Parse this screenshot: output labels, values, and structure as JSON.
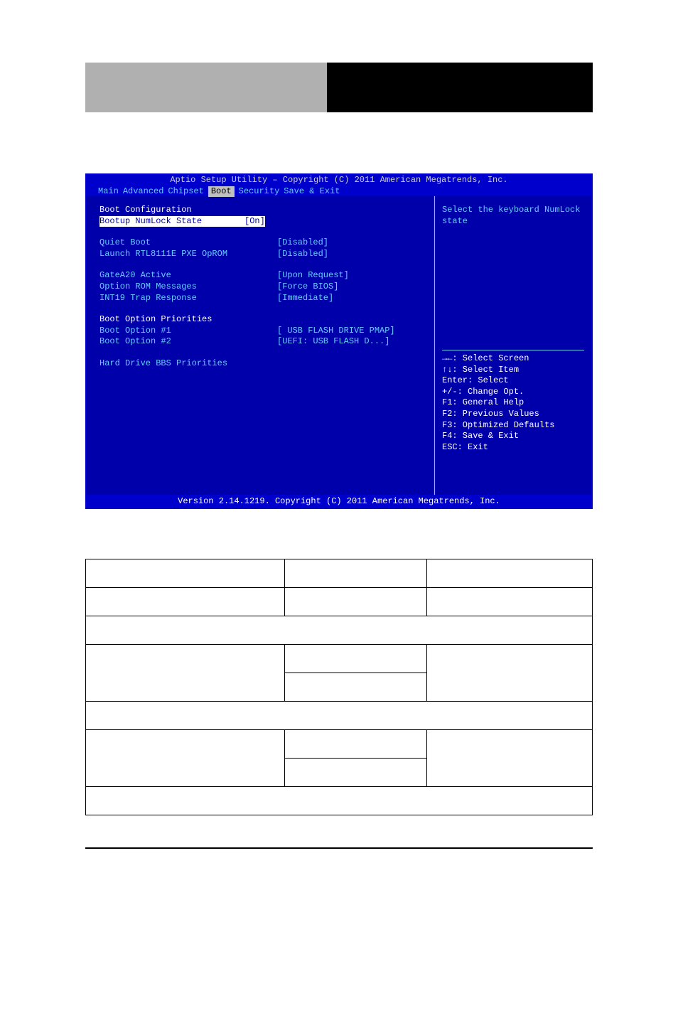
{
  "bios": {
    "title": "Aptio Setup Utility – Copyright (C) 2011 American Megatrends, Inc.",
    "footer": "Version 2.14.1219. Copyright (C) 2011 American Megatrends, Inc.",
    "tabs": [
      "Main",
      "Advanced",
      "Chipset",
      "Boot",
      "Security",
      "Save & Exit"
    ],
    "active_tab_index": 3,
    "colors": {
      "header_bg": "#0000cc",
      "body_bg": "#0000aa",
      "text_cyan": "#66ccff",
      "text_white": "#ffffff",
      "selected_bg": "#ffffff",
      "selected_fg": "#0000aa"
    },
    "main_panel": {
      "section1_header": "Boot Configuration",
      "rows": [
        {
          "label": "Bootup NumLock State",
          "value": "[On]",
          "selected": true
        },
        {
          "spacer": true
        },
        {
          "label": "Quiet Boot",
          "value": "[Disabled]"
        },
        {
          "label": "Launch RTL8111E PXE OpROM",
          "value": "[Disabled]"
        },
        {
          "spacer": true
        },
        {
          "label": "GateA20 Active",
          "value": "[Upon Request]"
        },
        {
          "label": "Option ROM Messages",
          "value": "[Force BIOS]"
        },
        {
          "label": "INT19 Trap Response",
          "value": "[Immediate]"
        },
        {
          "spacer": true
        }
      ],
      "section2_header": "Boot Option Priorities",
      "rows2": [
        {
          "label": "Boot Option #1",
          "value": "[ USB FLASH DRIVE PMAP]"
        },
        {
          "label": "Boot Option #2",
          "value": "[UEFI:  USB FLASH D...]"
        },
        {
          "spacer": true
        },
        {
          "label": "Hard Drive BBS Priorities",
          "value": ""
        }
      ]
    },
    "side_panel": {
      "help_text": "Select the keyboard NumLock state",
      "nav": [
        "→←: Select Screen",
        "↑↓: Select Item",
        "Enter: Select",
        "+/-: Change Opt.",
        "F1: General Help",
        "F2: Previous Values",
        "F3: Optimized Defaults",
        "F4: Save & Exit",
        "ESC: Exit"
      ]
    }
  },
  "params_table": {
    "border_color": "#000000",
    "rows": [
      {
        "type": "header3",
        "c1": "",
        "c2": "",
        "c3": ""
      },
      {
        "type": "row3",
        "c1": "",
        "c2": "",
        "c3": ""
      },
      {
        "type": "span",
        "text": ""
      },
      {
        "type": "row3",
        "c1": "",
        "c2": "",
        "c3": "",
        "c3_rowspan": 2
      },
      {
        "type": "row2",
        "c1_hidden": true,
        "c2": ""
      },
      {
        "type": "span",
        "text": ""
      },
      {
        "type": "row3",
        "c1": "",
        "c2": "",
        "c3": "",
        "c3_rowspan": 2
      },
      {
        "type": "row2",
        "c1_hidden": true,
        "c2": ""
      },
      {
        "type": "span",
        "text": ""
      }
    ]
  }
}
